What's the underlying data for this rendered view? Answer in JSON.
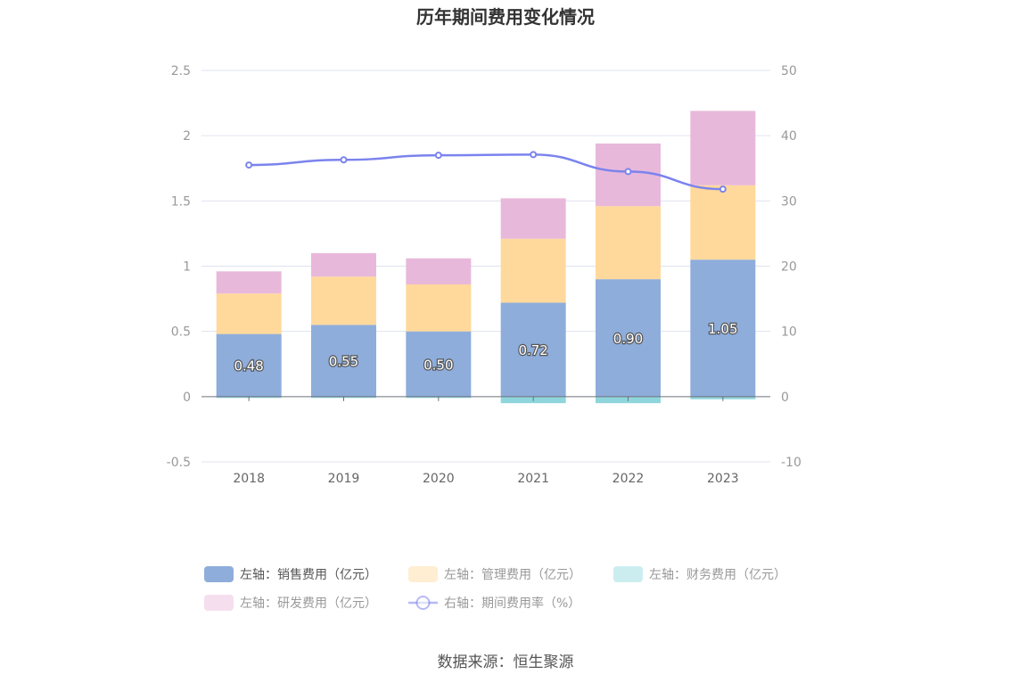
{
  "source_label": "数据来源：恒生聚源",
  "chart_data": {
    "type": "bar",
    "title": "历年期间费用变化情况",
    "categories": [
      "2018",
      "2019",
      "2020",
      "2021",
      "2022",
      "2023"
    ],
    "stacked": true,
    "left_axis": {
      "min": -0.5,
      "max": 2.5,
      "ticks": [
        -0.5,
        0,
        0.5,
        1,
        1.5,
        2,
        2.5
      ],
      "tick_labels": [
        "-0.5",
        "0",
        "0.5",
        "1",
        "1.5",
        "2",
        "2.5"
      ]
    },
    "right_axis": {
      "min": -10,
      "max": 50,
      "ticks": [
        -10,
        0,
        10,
        20,
        30,
        40,
        50
      ],
      "tick_labels": [
        "-10",
        "0",
        "10",
        "20",
        "30",
        "40",
        "50"
      ]
    },
    "grid": true,
    "legend_position": "bottom",
    "series": [
      {
        "name": "左轴：销售费用（亿元）",
        "type": "bar",
        "axis": "left",
        "color": "#8eaddb",
        "values": [
          0.48,
          0.55,
          0.5,
          0.72,
          0.9,
          1.05
        ],
        "labels": [
          "0.48",
          "0.55",
          "0.50",
          "0.72",
          "0.90",
          "1.05"
        ]
      },
      {
        "name": "左轴：管理费用（亿元）",
        "type": "bar",
        "axis": "left",
        "color": "#ffd99b",
        "values": [
          0.31,
          0.37,
          0.36,
          0.49,
          0.56,
          0.57
        ]
      },
      {
        "name": "左轴：财务费用（亿元）",
        "type": "bar",
        "axis": "left",
        "color": "#8ed6dc",
        "values": [
          -0.01,
          -0.01,
          -0.01,
          -0.05,
          -0.05,
          -0.02
        ]
      },
      {
        "name": "左轴：研发费用（亿元）",
        "type": "bar",
        "axis": "left",
        "color": "#e8b8da",
        "values": [
          0.17,
          0.18,
          0.2,
          0.31,
          0.48,
          0.57
        ]
      },
      {
        "name": "右轴：期间费用率（%）",
        "type": "line",
        "axis": "right",
        "color": "#7b83ee",
        "values": [
          35.5,
          36.3,
          37.0,
          37.1,
          34.5,
          31.8
        ]
      }
    ]
  }
}
